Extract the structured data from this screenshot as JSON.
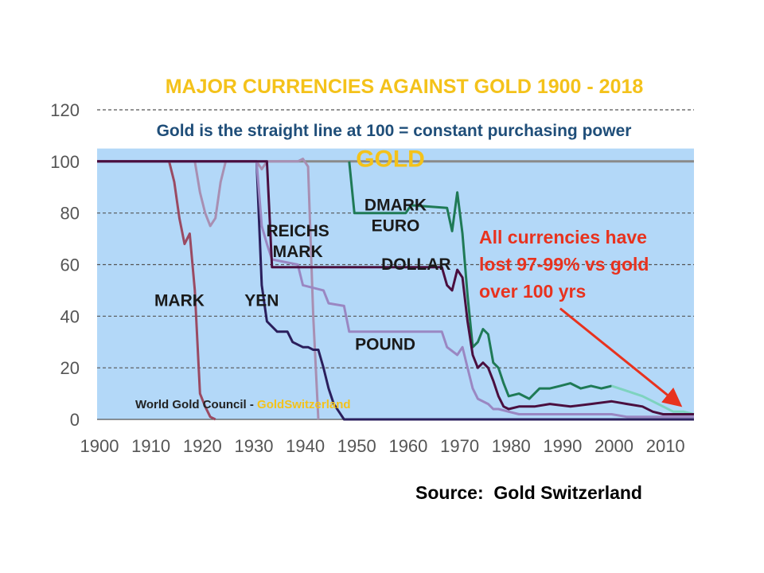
{
  "chart_data": {
    "type": "line",
    "title": "MAJOR CURRENCIES AGAINST GOLD 1900 - 2018",
    "subtitle": "Gold is the straight line at 100 = constant purchasing power",
    "xlim": [
      1900,
      2016
    ],
    "ylim": [
      0,
      120
    ],
    "x_ticks": [
      1900,
      1910,
      1920,
      1930,
      1940,
      1950,
      1960,
      1970,
      1980,
      1990,
      2000,
      2010
    ],
    "y_ticks": [
      0,
      20,
      40,
      60,
      80,
      100,
      120
    ],
    "grid": "dashed horizontal",
    "background_band": [
      0,
      105
    ],
    "colors": {
      "title": "#f4c21a",
      "subtitle": "#1f4e79",
      "band": "#b3d8f8",
      "gold": "#8a8a8a",
      "gold_label": "#f4c21a",
      "mark": "#9a4a62",
      "reichsmark": "#a88fb2",
      "yen": "#2b1f5c",
      "pound": "#9a87c2",
      "dmark_euro": "#1f7a56",
      "dmark_euro_late": "#7ed3bf",
      "dollar": "#4a0f3f",
      "annotation": "#e8321e",
      "axis_text": "#555555"
    },
    "series": [
      {
        "key": "gold",
        "x": [
          1900,
          2016
        ],
        "y": [
          100,
          100
        ]
      },
      {
        "key": "mark",
        "x": [
          1900,
          1914,
          1915,
          1916,
          1917,
          1918,
          1919,
          1920,
          1921,
          1922,
          1923
        ],
        "y": [
          100,
          100,
          92,
          78,
          68,
          72,
          50,
          10,
          5,
          1,
          0
        ]
      },
      {
        "key": "reichsmark",
        "x": [
          1900,
          1919,
          1920,
          1921,
          1922,
          1923,
          1924,
          1925,
          1926,
          1930,
          1931,
          1932,
          1933,
          1934,
          1935,
          1938,
          1939,
          1940,
          1941,
          1942,
          1943
        ],
        "y": [
          100,
          100,
          88,
          80,
          75,
          78,
          92,
          100,
          100,
          100,
          100,
          97,
          100,
          100,
          100,
          100,
          100,
          101,
          98,
          40,
          0
        ]
      },
      {
        "key": "yen",
        "x": [
          1900,
          1931,
          1932,
          1933,
          1935,
          1937,
          1938,
          1940,
          1941,
          1942,
          1943,
          1944,
          1945,
          1946,
          1947,
          1948,
          2016
        ],
        "y": [
          100,
          100,
          52,
          38,
          34,
          34,
          30,
          28,
          28,
          27,
          27,
          20,
          12,
          6,
          3,
          0,
          0
        ]
      },
      {
        "key": "pound",
        "x": [
          1900,
          1931,
          1932,
          1933,
          1934,
          1939,
          1940,
          1944,
          1945,
          1948,
          1949,
          1967,
          1968,
          1970,
          1971,
          1972,
          1973,
          1974,
          1976,
          1977,
          1978,
          1980,
          1982,
          2000,
          2003,
          2016
        ],
        "y": [
          100,
          100,
          75,
          68,
          62,
          60,
          52,
          50,
          45,
          44,
          34,
          34,
          28,
          25,
          28,
          20,
          12,
          8,
          6,
          4,
          4,
          3,
          2,
          2,
          1,
          1
        ]
      },
      {
        "key": "dmark_euro",
        "x": [
          1949,
          1950,
          1960,
          1961,
          1968,
          1969,
          1970,
          1971,
          1972,
          1973,
          1974,
          1975,
          1976,
          1977,
          1978,
          1979,
          1980,
          1982,
          1984,
          1986,
          1988,
          1990,
          1992,
          1994,
          1996,
          1998,
          2000
        ],
        "y": [
          100,
          80,
          80,
          83,
          82,
          73,
          88,
          72,
          48,
          28,
          30,
          35,
          33,
          22,
          20,
          14,
          9,
          10,
          8,
          12,
          12,
          13,
          14,
          12,
          13,
          12,
          13
        ]
      },
      {
        "key": "dmark_euro_late",
        "x": [
          2000,
          2003,
          2006,
          2008,
          2010,
          2012,
          2014,
          2016
        ],
        "y": [
          13,
          11,
          9,
          7,
          5,
          3,
          3,
          2
        ]
      },
      {
        "key": "dollar",
        "x": [
          1900,
          1933,
          1934,
          1966,
          1967,
          1968,
          1969,
          1970,
          1971,
          1972,
          1973,
          1974,
          1975,
          1976,
          1977,
          1978,
          1979,
          1980,
          1982,
          1985,
          1988,
          1992,
          1996,
          2000,
          2003,
          2006,
          2008,
          2010,
          2012,
          2016
        ],
        "y": [
          100,
          100,
          59,
          59,
          59,
          52,
          50,
          58,
          55,
          38,
          25,
          20,
          22,
          20,
          15,
          9,
          5,
          4,
          5,
          5,
          6,
          5,
          6,
          7,
          6,
          5,
          3,
          2,
          2,
          2
        ]
      }
    ],
    "series_labels": [
      {
        "text": "GOLD",
        "x": 1957,
        "y": 98,
        "key": "gold_label",
        "size": 30
      },
      {
        "text": "DMARK",
        "x": 1958,
        "y": 81,
        "key": "dmark",
        "size": 21
      },
      {
        "text": "EURO",
        "x": 1958,
        "y": 73,
        "key": "euro",
        "size": 21
      },
      {
        "text": "REICHS",
        "x": 1939,
        "y": 71,
        "key": "reichs",
        "size": 21
      },
      {
        "text": "MARK",
        "x": 1939,
        "y": 63,
        "key": "reichs_mark",
        "size": 21
      },
      {
        "text": "DOLLAR",
        "x": 1962,
        "y": 58,
        "key": "dollar",
        "size": 21
      },
      {
        "text": "MARK",
        "x": 1916,
        "y": 44,
        "key": "mark",
        "size": 21
      },
      {
        "text": "YEN",
        "x": 1932,
        "y": 44,
        "key": "yen",
        "size": 21
      },
      {
        "text": "POUND",
        "x": 1956,
        "y": 27,
        "key": "pound",
        "size": 21
      }
    ],
    "annotation": {
      "lines": [
        "All currencies have",
        "lost 97-99% vs gold",
        "over 100 yrs"
      ],
      "arrow_from": [
        1990,
        43
      ],
      "arrow_to": [
        2013,
        6
      ]
    },
    "credit": {
      "part1": "World Gold Council - ",
      "part2": "GoldSwitzerland"
    }
  },
  "source": "Source:  Gold Switzerland"
}
